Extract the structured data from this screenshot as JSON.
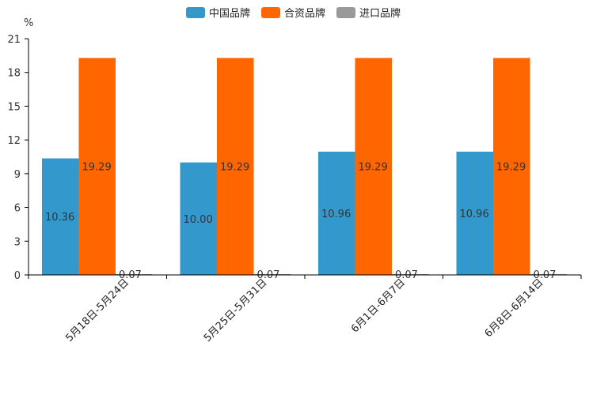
{
  "chart_data": {
    "type": "bar",
    "unit": "%",
    "categories": [
      "5月18日-5月24日",
      "5月25日-5月31日",
      "6月1日-6月7日",
      "6月8日-6月14日"
    ],
    "series": [
      {
        "name": "中国品牌",
        "values": [
          10.36,
          10.0,
          10.96,
          10.96
        ],
        "labels": [
          "10.36",
          "10.00",
          "10.96",
          "10.96"
        ],
        "color": "#3399cc"
      },
      {
        "name": "合资品牌",
        "values": [
          19.29,
          19.29,
          19.29,
          19.29
        ],
        "labels": [
          "19.29",
          "19.29",
          "19.29",
          "19.29"
        ],
        "color": "#ff6600"
      },
      {
        "name": "进口品牌",
        "values": [
          0.07,
          0.07,
          0.07,
          0.07
        ],
        "labels": [
          "0.07",
          "0.07",
          "0.07",
          "0.07"
        ],
        "color": "#999999"
      }
    ],
    "yticks": [
      0,
      3,
      6,
      9,
      12,
      15,
      18,
      21
    ],
    "ylim": [
      0,
      21
    ],
    "legend_position": "top-center",
    "grid": false
  }
}
